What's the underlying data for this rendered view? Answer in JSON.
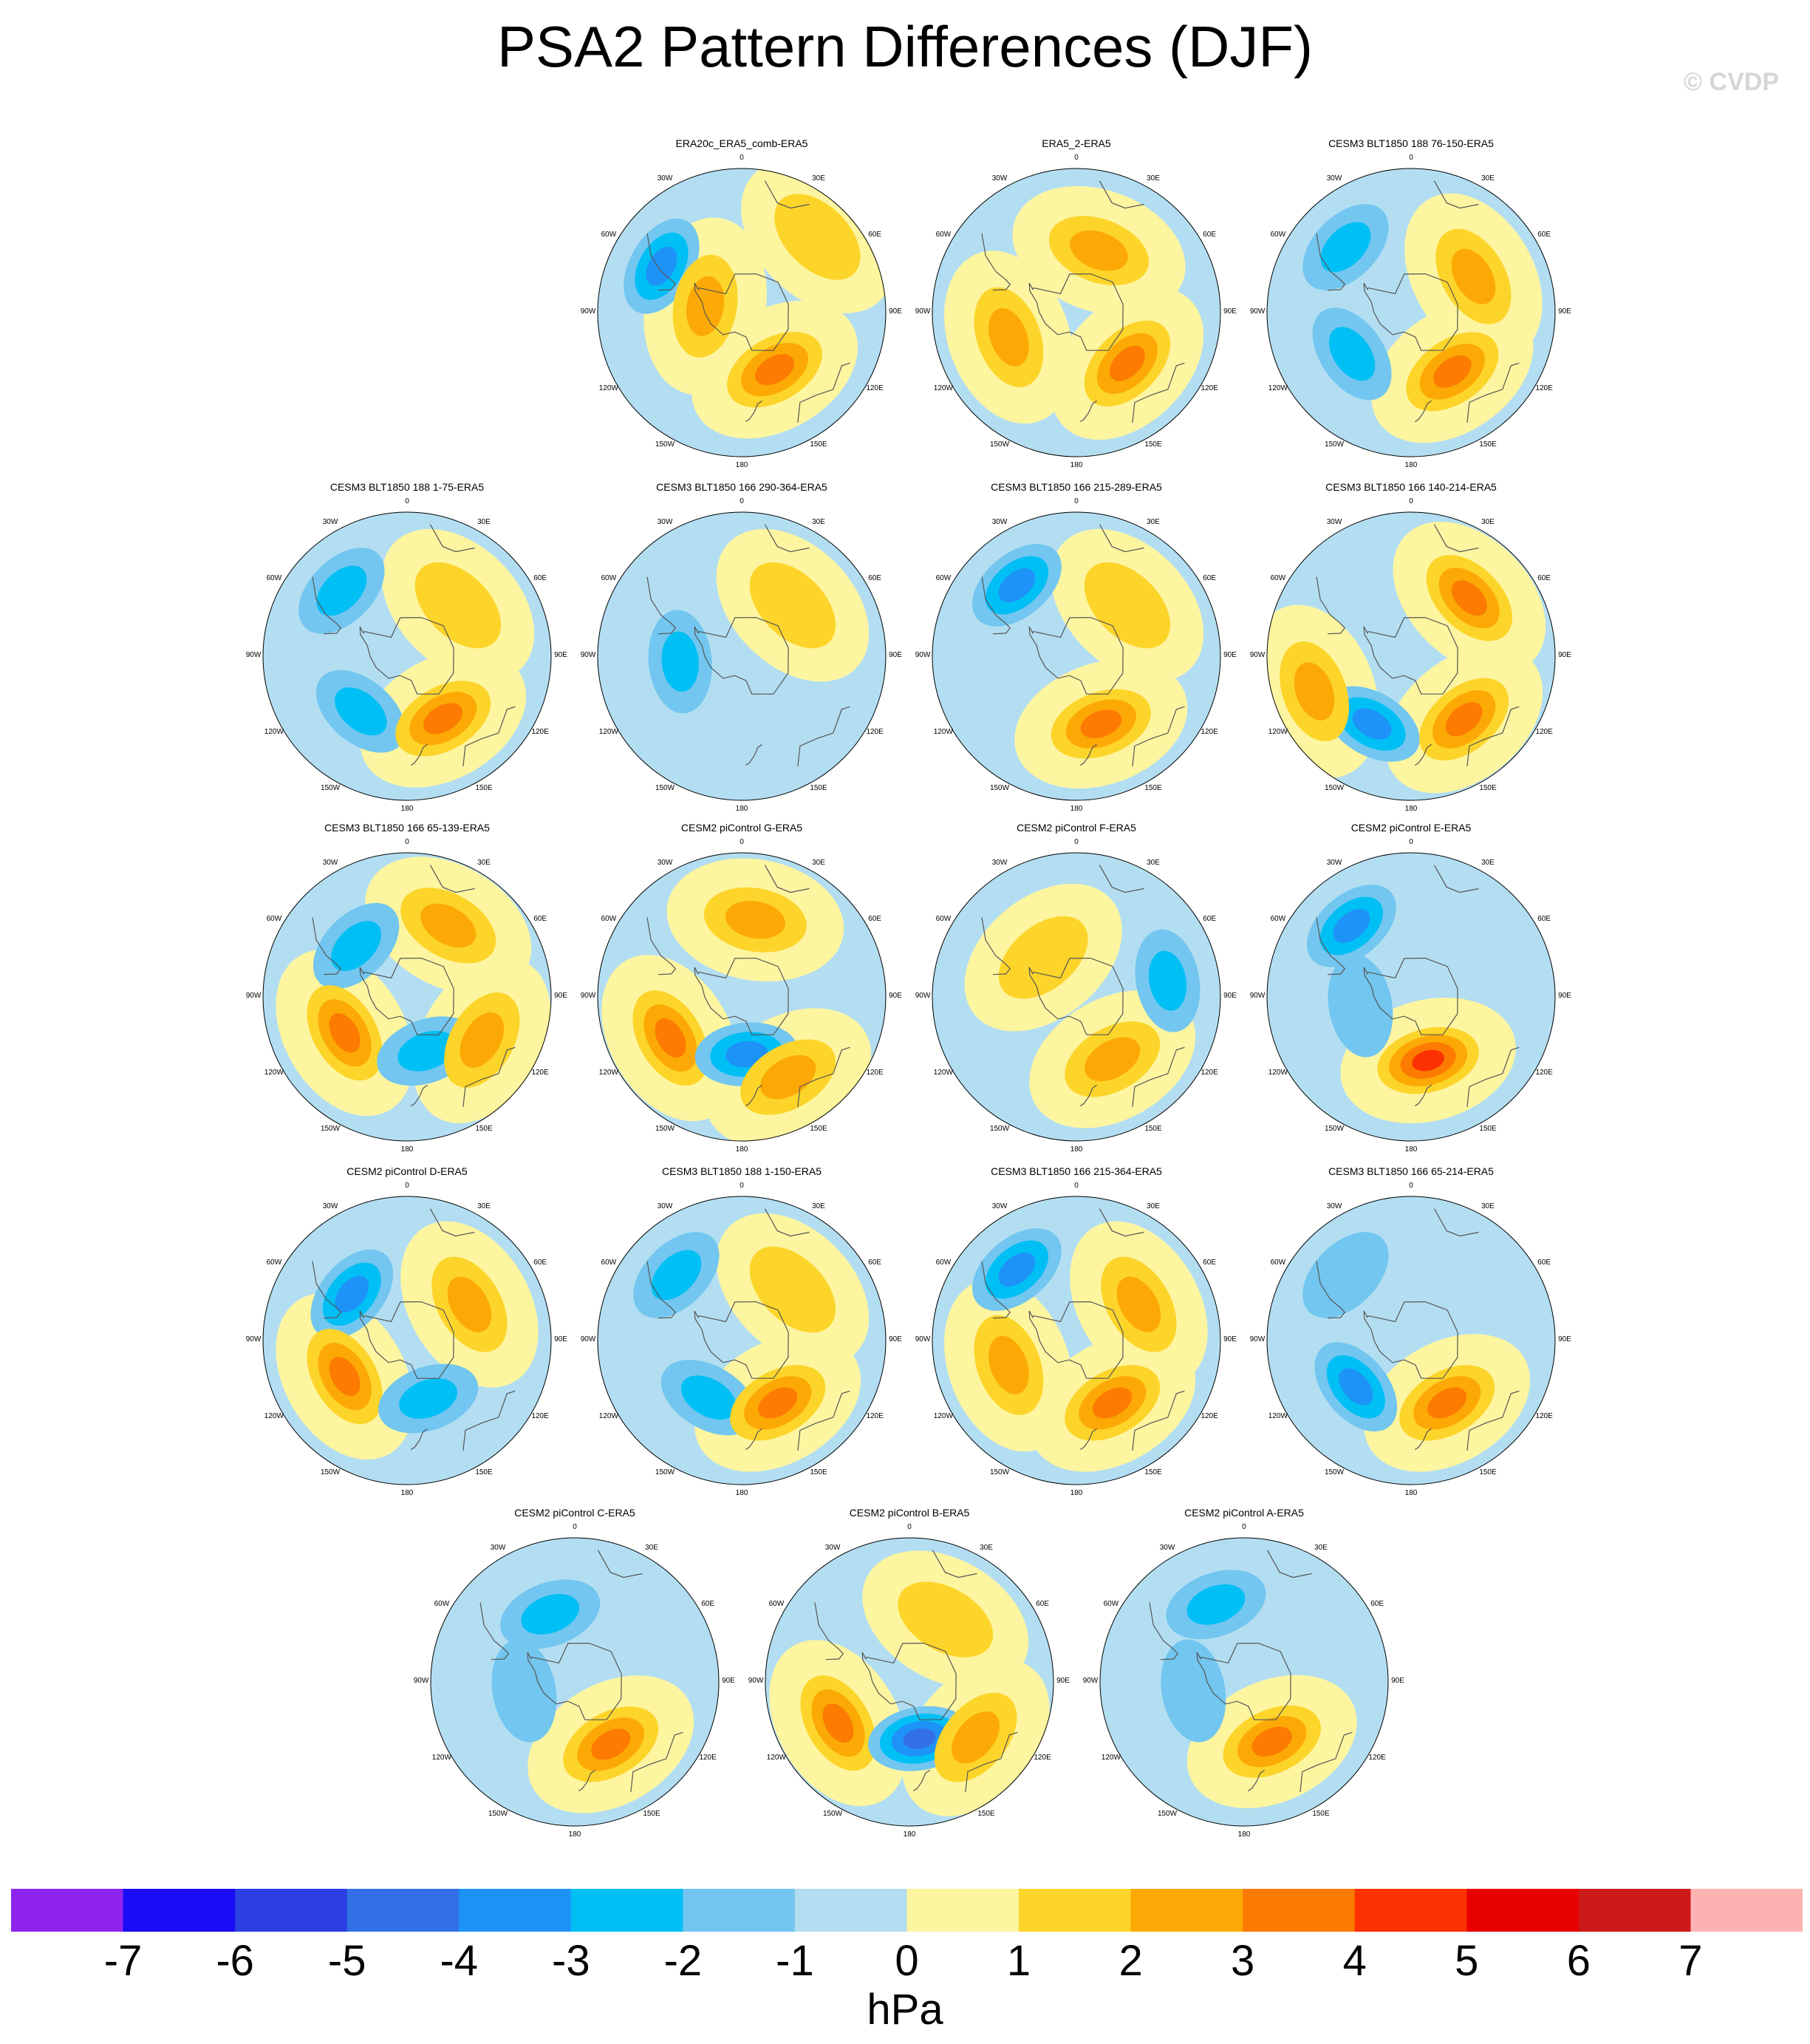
{
  "title": "PSA2 Pattern Differences (DJF)",
  "copyright": "© CVDP",
  "chart_data": {
    "type": "heatmap",
    "projection": "south-polar-stereographic",
    "variable": "PSA2 pattern difference",
    "units": "hPa",
    "colorbar": {
      "ticks": [
        "-7",
        "-6",
        "-5",
        "-4",
        "-3",
        "-2",
        "-1",
        "0",
        "1",
        "2",
        "3",
        "4",
        "5",
        "6",
        "7"
      ],
      "colors": [
        "#8e24ec",
        "#1a0cf5",
        "#2b3fe3",
        "#3370e6",
        "#1e93f7",
        "#00bff5",
        "#72c6ef",
        "#b3def2",
        "#fdf5a0",
        "#fdd42a",
        "#fca906",
        "#fc7b00",
        "#fd3102",
        "#e80000",
        "#cc1a1a",
        "#fdb2b2"
      ]
    },
    "longitude_labels": [
      "0",
      "30E",
      "60E",
      "90E",
      "120E",
      "150E",
      "180",
      "150W",
      "120W",
      "90W",
      "60W",
      "30W"
    ],
    "panels": [
      {
        "title": "ERA20c_ERA5_comb-ERA5",
        "features": [
          {
            "lon": -60,
            "lat": -45,
            "value": -3
          },
          {
            "lon": -80,
            "lat": -72,
            "value": 2
          },
          {
            "lon": 150,
            "lat": -58,
            "value": 3
          },
          {
            "lon": 45,
            "lat": -38,
            "value": 1
          }
        ]
      },
      {
        "title": "ERA5_2-ERA5",
        "features": [
          {
            "lon": 20,
            "lat": -58,
            "value": 2
          },
          {
            "lon": -110,
            "lat": -55,
            "value": 2
          },
          {
            "lon": 135,
            "lat": -55,
            "value": 3
          }
        ]
      },
      {
        "title": "CESM3 BLT1850 188 76-150-ERA5",
        "features": [
          {
            "lon": -45,
            "lat": -45,
            "value": -2
          },
          {
            "lon": -125,
            "lat": -55,
            "value": -2
          },
          {
            "lon": 145,
            "lat": -55,
            "value": 3
          },
          {
            "lon": 60,
            "lat": -55,
            "value": 2
          }
        ]
      },
      {
        "title": "CESM3 BLT1850 188 1-75-ERA5",
        "features": [
          {
            "lon": -45,
            "lat": -45,
            "value": -2
          },
          {
            "lon": -140,
            "lat": -55,
            "value": -2
          },
          {
            "lon": 150,
            "lat": -55,
            "value": 3
          },
          {
            "lon": 45,
            "lat": -55,
            "value": 1
          }
        ]
      },
      {
        "title": "CESM3 BLT1850 166 290-364-ERA5",
        "features": [
          {
            "lon": 45,
            "lat": -55,
            "value": 1
          },
          {
            "lon": -95,
            "lat": -60,
            "value": -2
          }
        ]
      },
      {
        "title": "CESM3 BLT1850 166 215-289-ERA5",
        "features": [
          {
            "lon": -40,
            "lat": -45,
            "value": -3
          },
          {
            "lon": 160,
            "lat": -55,
            "value": 3
          },
          {
            "lon": 45,
            "lat": -55,
            "value": 1
          }
        ]
      },
      {
        "title": "CESM3 BLT1850 166 140-214-ERA5",
        "features": [
          {
            "lon": -150,
            "lat": -52,
            "value": -3
          },
          {
            "lon": 140,
            "lat": -50,
            "value": 3
          },
          {
            "lon": 45,
            "lat": -50,
            "value": 3
          },
          {
            "lon": -110,
            "lat": -40,
            "value": 2
          }
        ]
      },
      {
        "title": "CESM3 BLT1850 166 65-139-ERA5",
        "features": [
          {
            "lon": -45,
            "lat": -55,
            "value": -2
          },
          {
            "lon": -120,
            "lat": -55,
            "value": 3
          },
          {
            "lon": 160,
            "lat": -62,
            "value": -2
          },
          {
            "lon": 120,
            "lat": -48,
            "value": 2
          },
          {
            "lon": 30,
            "lat": -50,
            "value": 2
          }
        ]
      },
      {
        "title": "CESM2 piControl G-ERA5",
        "features": [
          {
            "lon": -120,
            "lat": -50,
            "value": 3
          },
          {
            "lon": 175,
            "lat": -62,
            "value": -3
          },
          {
            "lon": 10,
            "lat": -52,
            "value": 2
          },
          {
            "lon": 150,
            "lat": -45,
            "value": 2
          }
        ]
      },
      {
        "title": "CESM2 piControl F-ERA5",
        "features": [
          {
            "lon": 80,
            "lat": -45,
            "value": -2
          },
          {
            "lon": 150,
            "lat": -55,
            "value": 2
          },
          {
            "lon": -40,
            "lat": -65,
            "value": 1
          }
        ]
      },
      {
        "title": "CESM2 piControl E-ERA5",
        "features": [
          {
            "lon": -40,
            "lat": -45,
            "value": -3
          },
          {
            "lon": 165,
            "lat": -58,
            "value": 4
          },
          {
            "lon": -100,
            "lat": -65,
            "value": -1
          }
        ]
      },
      {
        "title": "CESM2 piControl D-ERA5",
        "features": [
          {
            "lon": -50,
            "lat": -55,
            "value": -3
          },
          {
            "lon": -120,
            "lat": -55,
            "value": 3
          },
          {
            "lon": 160,
            "lat": -60,
            "value": -2
          },
          {
            "lon": 60,
            "lat": -55,
            "value": 2
          }
        ]
      },
      {
        "title": "CESM3 BLT1850 188 1-150-ERA5",
        "features": [
          {
            "lon": -45,
            "lat": -45,
            "value": -2
          },
          {
            "lon": -150,
            "lat": -58,
            "value": -2
          },
          {
            "lon": 150,
            "lat": -55,
            "value": 3
          },
          {
            "lon": 45,
            "lat": -55,
            "value": 1
          }
        ]
      },
      {
        "title": "CESM3 BLT1850 166 215-364-ERA5",
        "features": [
          {
            "lon": -40,
            "lat": -45,
            "value": -3
          },
          {
            "lon": -110,
            "lat": -55,
            "value": 2
          },
          {
            "lon": 150,
            "lat": -55,
            "value": 3
          },
          {
            "lon": 60,
            "lat": -55,
            "value": 2
          }
        ]
      },
      {
        "title": "CESM3 BLT1850 166 65-214-ERA5",
        "features": [
          {
            "lon": -130,
            "lat": -55,
            "value": -3
          },
          {
            "lon": 150,
            "lat": -55,
            "value": 3
          },
          {
            "lon": -45,
            "lat": -45,
            "value": -1
          }
        ]
      },
      {
        "title": "CESM2 piControl C-ERA5",
        "features": [
          {
            "lon": -20,
            "lat": -55,
            "value": -2
          },
          {
            "lon": 150,
            "lat": -55,
            "value": 3
          },
          {
            "lon": -100,
            "lat": -65,
            "value": -1
          }
        ]
      },
      {
        "title": "CESM2 piControl B-ERA5",
        "features": [
          {
            "lon": -120,
            "lat": -50,
            "value": 3
          },
          {
            "lon": 170,
            "lat": -62,
            "value": -4
          },
          {
            "lon": 130,
            "lat": -48,
            "value": 2
          },
          {
            "lon": 30,
            "lat": -55,
            "value": 1
          }
        ]
      },
      {
        "title": "CESM2 piControl A-ERA5",
        "features": [
          {
            "lon": -20,
            "lat": -50,
            "value": -2
          },
          {
            "lon": 155,
            "lat": -58,
            "value": 3
          },
          {
            "lon": -100,
            "lat": -65,
            "value": -1
          }
        ]
      }
    ]
  }
}
